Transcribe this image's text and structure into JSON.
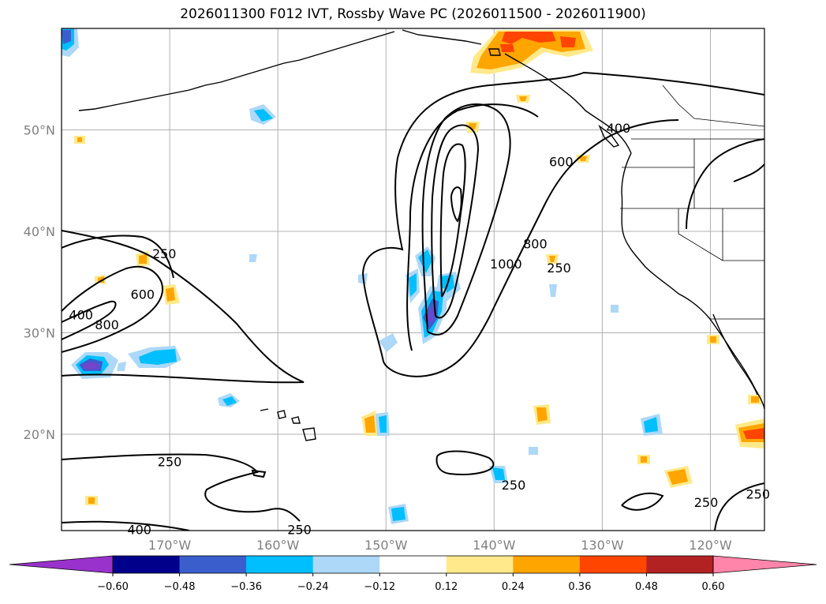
{
  "title": "2026011300 F012 IVT, Rossby Wave PC (2026011500 - 2026011900)",
  "map": {
    "lon_range": [
      -180,
      -115
    ],
    "lat_range": [
      10.5,
      60
    ],
    "lat_ticks": [
      {
        "value": 50,
        "label": "50°N"
      },
      {
        "value": 40,
        "label": "40°N"
      },
      {
        "value": 30,
        "label": "30°N"
      },
      {
        "value": 20,
        "label": "20°N"
      }
    ],
    "lon_ticks": [
      {
        "value": -170,
        "label": "170°W"
      },
      {
        "value": -160,
        "label": "160°W"
      },
      {
        "value": -150,
        "label": "150°W"
      },
      {
        "value": -140,
        "label": "140°W"
      },
      {
        "value": -130,
        "label": "130°W"
      },
      {
        "value": -120,
        "label": "120°W"
      }
    ],
    "contour_labels": [
      {
        "text": "250",
        "lon": -170.5,
        "lat": 37.8
      },
      {
        "text": "600",
        "lon": -172.5,
        "lat": 33.8
      },
      {
        "text": "800",
        "lon": -175.8,
        "lat": 30.8
      },
      {
        "text": "400",
        "lon": -178.2,
        "lat": 31.8
      },
      {
        "text": "400",
        "lon": -128.5,
        "lat": 50.2
      },
      {
        "text": "600",
        "lon": -133.8,
        "lat": 46.9
      },
      {
        "text": "800",
        "lon": -136.2,
        "lat": 38.8
      },
      {
        "text": "1000",
        "lon": -138.9,
        "lat": 36.8
      },
      {
        "text": "250",
        "lon": -134.0,
        "lat": 36.4
      },
      {
        "text": "250",
        "lon": -170.0,
        "lat": 17.3
      },
      {
        "text": "250",
        "lon": -138.2,
        "lat": 15.0
      },
      {
        "text": "250",
        "lon": -120.4,
        "lat": 13.3
      },
      {
        "text": "250",
        "lon": -115.6,
        "lat": 14.1
      },
      {
        "text": "400",
        "lon": -172.8,
        "lat": 10.6
      },
      {
        "text": "250",
        "lon": -158.0,
        "lat": 10.6
      }
    ]
  },
  "colorbar": {
    "ticks": [
      "−0.60",
      "−0.48",
      "−0.36",
      "−0.24",
      "−0.12",
      "0.12",
      "0.24",
      "0.36",
      "0.48",
      "0.60"
    ],
    "colors": [
      "#9932cc",
      "#00008b",
      "#3a5fcd",
      "#00bfff",
      "#add8f7",
      "#ffffff",
      "#ffe98a",
      "#ffa500",
      "#ff4500",
      "#b22222",
      "#ff85aa"
    ]
  }
}
